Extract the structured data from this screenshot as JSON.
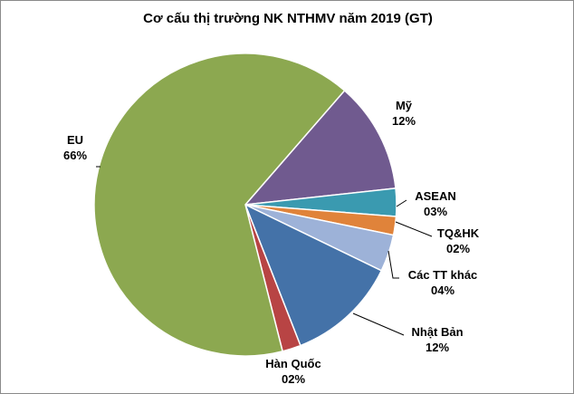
{
  "chart_data": {
    "type": "pie",
    "title": "Cơ cấu thị trường NK NTHMV năm 2019 (GT)",
    "slices": [
      {
        "label": "Mỹ",
        "value": 12,
        "value_label": "12%",
        "color": "#705A8F"
      },
      {
        "label": "ASEAN",
        "value": 3,
        "value_label": "03%",
        "color": "#3A9AB0"
      },
      {
        "label": "TQ&HK",
        "value": 2,
        "value_label": "02%",
        "color": "#E0833A"
      },
      {
        "label": "Các TT khác",
        "value": 4,
        "value_label": "04%",
        "color": "#9DB2D8"
      },
      {
        "label": "Nhật Bản",
        "value": 12,
        "value_label": "12%",
        "color": "#4472A8"
      },
      {
        "label": "Hàn Quốc",
        "value": 2,
        "value_label": "02%",
        "color": "#B84444"
      },
      {
        "label": "EU",
        "value": 66,
        "value_label": "66%",
        "color": "#8CA850"
      }
    ],
    "legend": "none"
  }
}
